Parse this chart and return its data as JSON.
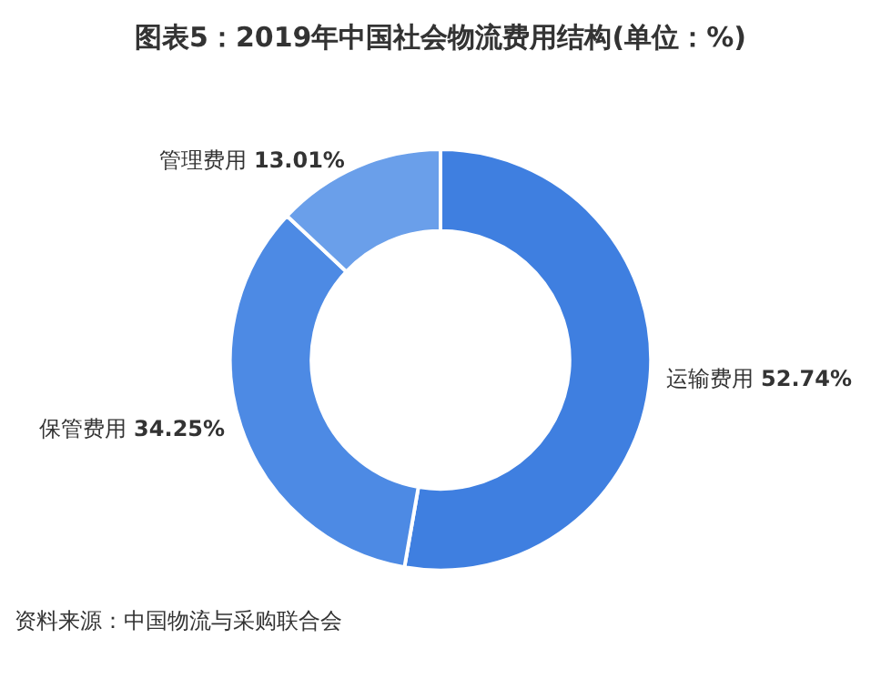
{
  "chart_data": {
    "type": "donut",
    "title": "图表5：2019年中国社会物流费用结构(单位：%)",
    "categories": [
      "运输费用",
      "保管费用",
      "管理费用"
    ],
    "values": [
      52.74,
      34.25,
      13.01
    ],
    "colors": [
      "#3f7fe0",
      "#4d8ae4",
      "#6a9fea"
    ],
    "value_labels": [
      "52.74%",
      "34.25%",
      "13.01%"
    ],
    "legend": false,
    "annotations": [
      "资料来源：中国物流与采购联合会"
    ]
  }
}
